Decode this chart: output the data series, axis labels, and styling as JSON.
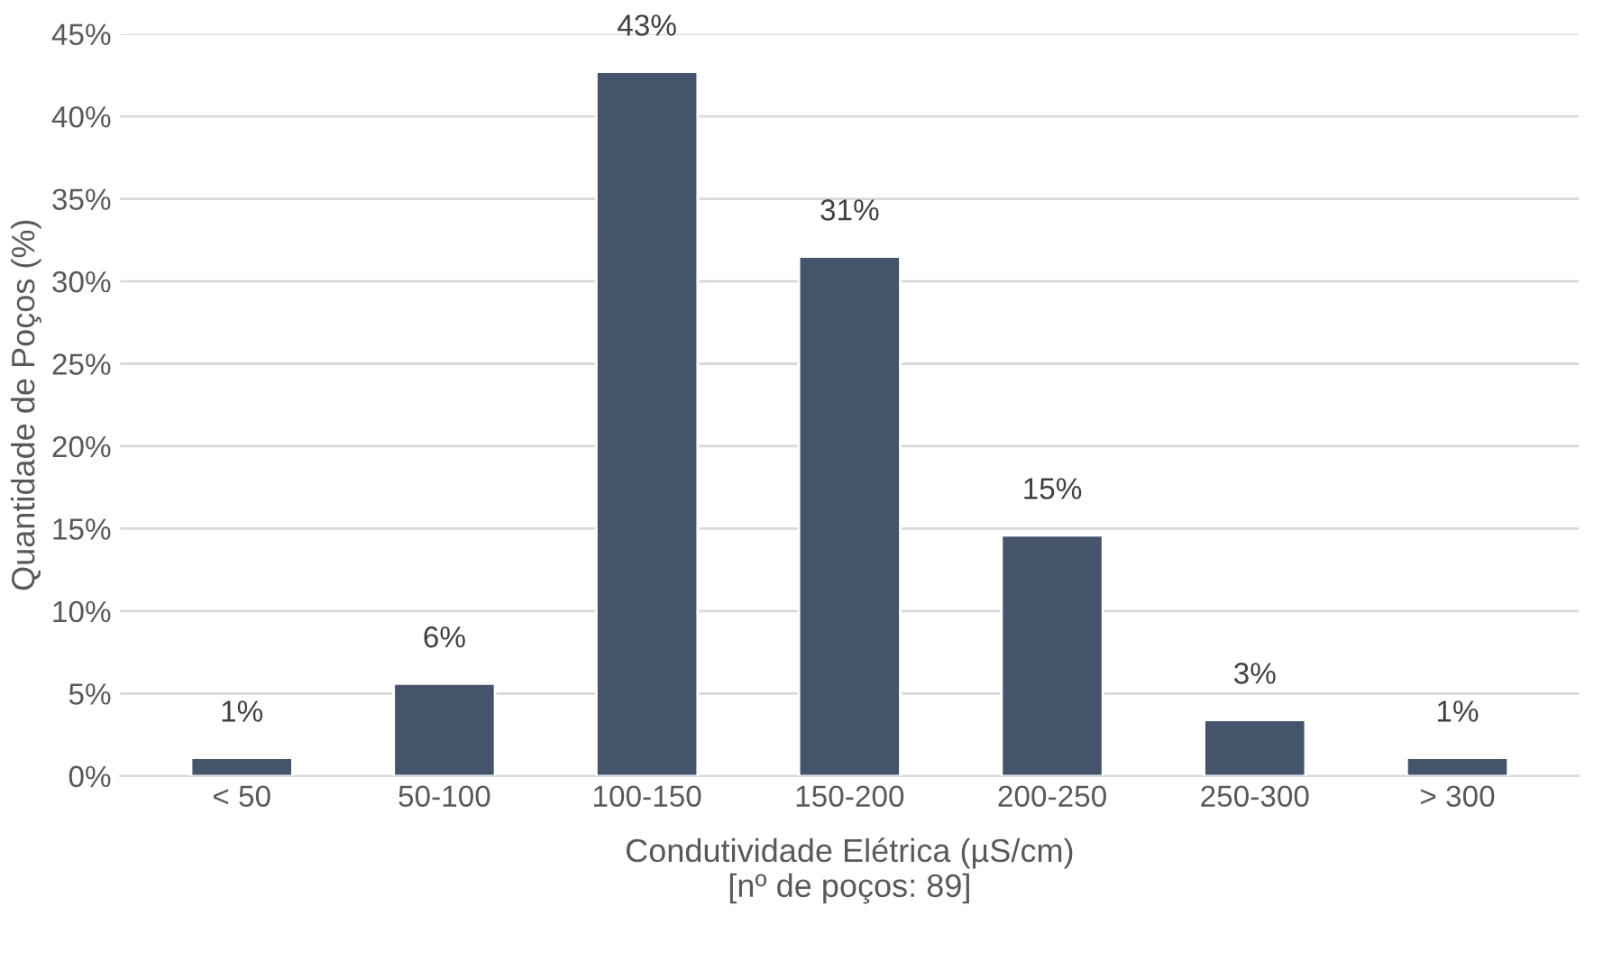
{
  "chart_data": {
    "type": "bar",
    "xlabel": "Condutividade Elétrica (µS/cm)\n[nº de poços: 89]",
    "ylabel": "Quantidade de Poços (%)",
    "categories": [
      "< 50",
      "50-100",
      "100-150",
      "150-200",
      "200-250",
      "250-300",
      "> 300"
    ],
    "values": [
      1.1,
      5.6,
      42.7,
      31.5,
      14.6,
      3.4,
      1.1
    ],
    "value_labels": [
      "1%",
      "6%",
      "43%",
      "31%",
      "15%",
      "3%",
      "1%"
    ],
    "color": "#44546a",
    "ylim": [
      0,
      45
    ],
    "yticks": [
      {
        "value": 0,
        "label": "0%"
      },
      {
        "value": 5,
        "label": "5%"
      },
      {
        "value": 10,
        "label": "10%"
      },
      {
        "value": 15,
        "label": "15%"
      },
      {
        "value": 20,
        "label": "20%"
      },
      {
        "value": 25,
        "label": "25%"
      },
      {
        "value": 30,
        "label": "30%"
      },
      {
        "value": 35,
        "label": "35%"
      },
      {
        "value": 40,
        "label": "40%"
      },
      {
        "value": 45,
        "label": "45%"
      }
    ],
    "grid": "y"
  }
}
